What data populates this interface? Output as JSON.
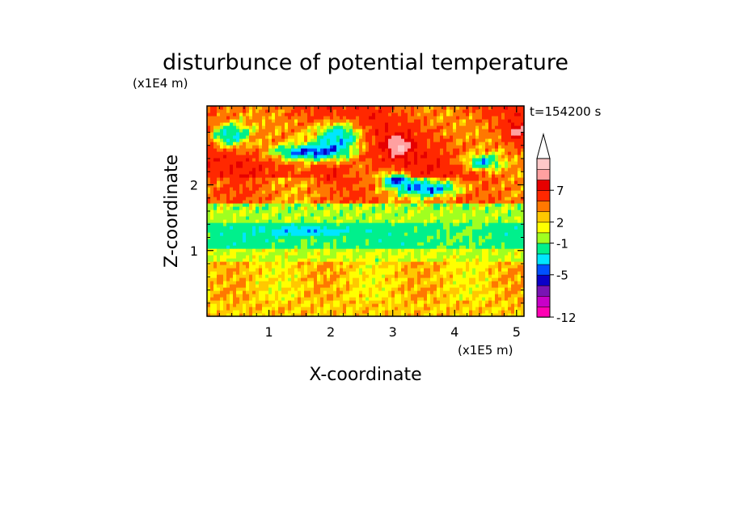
{
  "chart_data": {
    "type": "heatmap",
    "title": "disturbunce of potential temperature",
    "xlabel": "X-coordinate",
    "ylabel": "Z-coordinate",
    "x_unit": "(x1E5 m)",
    "y_unit": "(x1E4 m)",
    "time_label": "t=154200 s",
    "xlim": [
      0,
      5.12
    ],
    "ylim": [
      0,
      3.2
    ],
    "x_ticks": [
      {
        "value": 1,
        "label": "1"
      },
      {
        "value": 2,
        "label": "2"
      },
      {
        "value": 3,
        "label": "3"
      },
      {
        "value": 4,
        "label": "4"
      },
      {
        "value": 5,
        "label": "5"
      }
    ],
    "y_ticks": [
      {
        "value": 1,
        "label": "1"
      },
      {
        "value": 2,
        "label": "2"
      }
    ],
    "colorbar": {
      "levels": [
        {
          "color": "#ff00b4"
        },
        {
          "color": "#c800c8"
        },
        {
          "color": "#7814b4"
        },
        {
          "color": "#0a00c8"
        },
        {
          "color": "#0050ff"
        },
        {
          "color": "#00e6ff"
        },
        {
          "color": "#00f08c"
        },
        {
          "color": "#a0ff20"
        },
        {
          "color": "#ffff00"
        },
        {
          "color": "#ffc800"
        },
        {
          "color": "#ff7800"
        },
        {
          "color": "#ff2800"
        },
        {
          "color": "#e60000"
        },
        {
          "color": "#ffa0a0"
        },
        {
          "color": "#ffc8c8"
        }
      ],
      "labels": [
        {
          "text": "7",
          "boundary": 12
        },
        {
          "text": "2",
          "boundary": 9
        },
        {
          "text": "-1",
          "boundary": 7
        },
        {
          "text": "-5",
          "boundary": 4
        },
        {
          "text": "-12",
          "boundary": 0
        }
      ],
      "extend": "max"
    }
  }
}
